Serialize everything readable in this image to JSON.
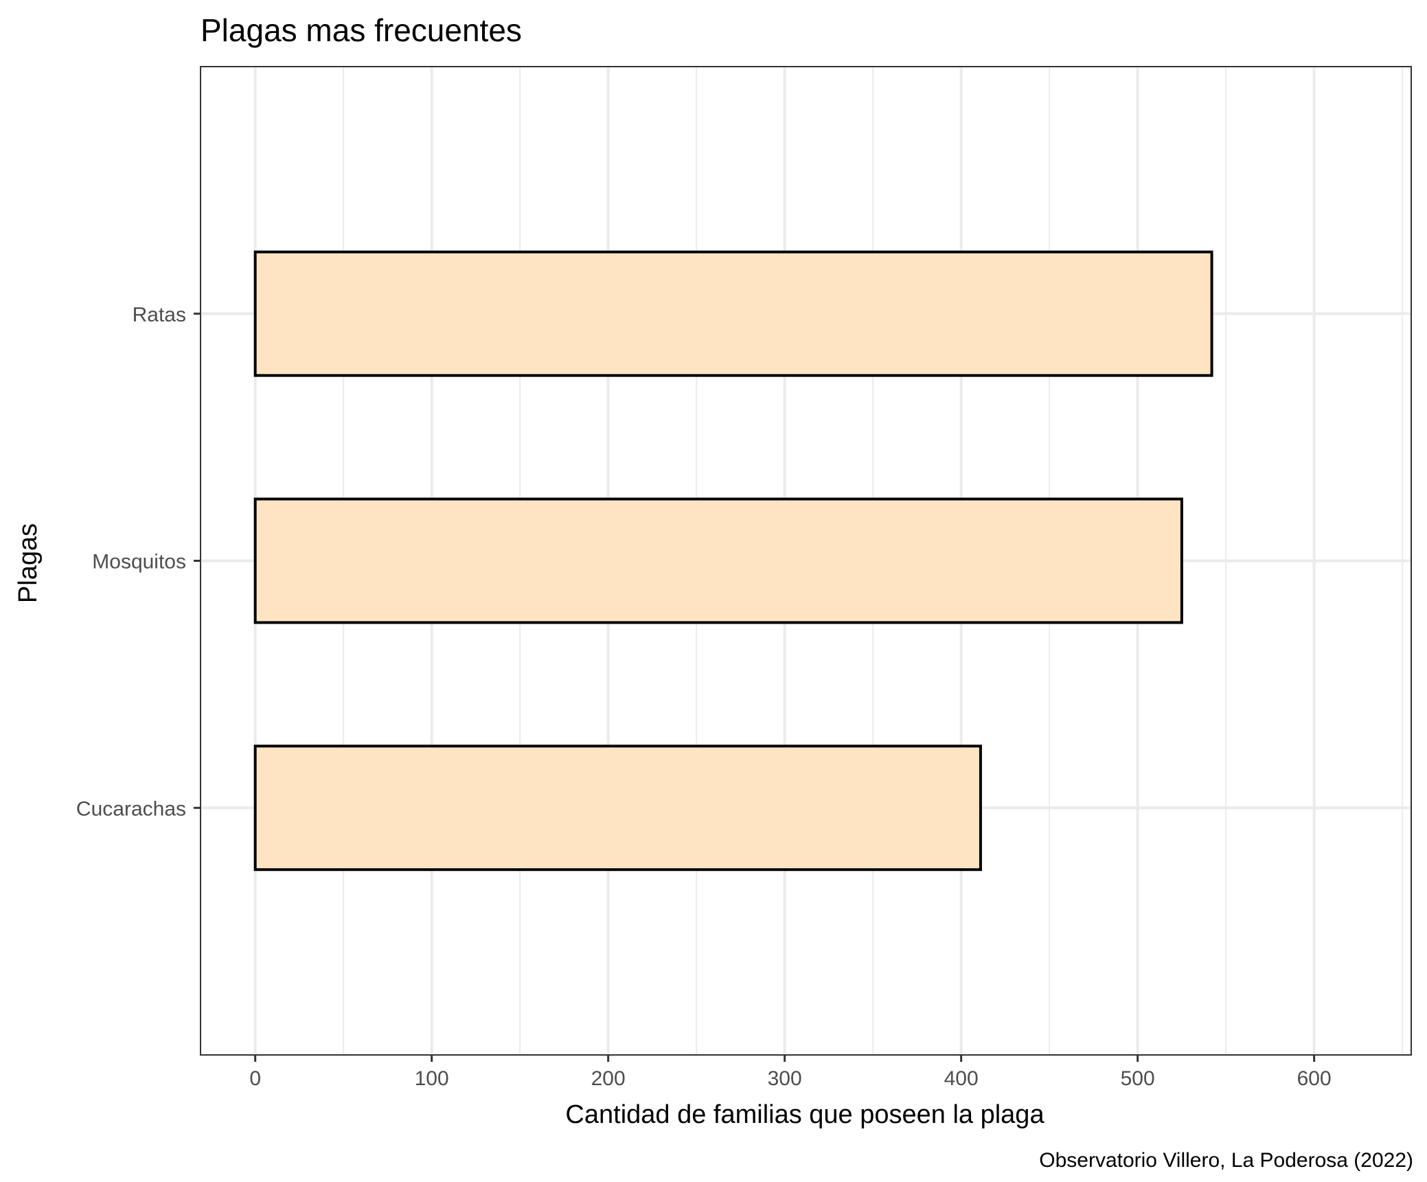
{
  "chart_data": {
    "type": "bar",
    "orientation": "horizontal",
    "title": "Plagas mas frecuentes",
    "xlabel": "Cantidad de familias que poseen la plaga",
    "ylabel": "Plagas",
    "caption": "Observatorio Villero, La Poderosa (2022)",
    "categories": [
      "Cucarachas",
      "Mosquitos",
      "Ratas"
    ],
    "values": [
      411,
      525,
      542
    ],
    "xlim": [
      -31,
      655
    ],
    "xticks": [
      0,
      100,
      200,
      300,
      400,
      500,
      600
    ],
    "xtick_labels": [
      "0",
      "100",
      "200",
      "300",
      "400",
      "500",
      "600"
    ],
    "grid": true,
    "legend": "none",
    "colors": {
      "bar_fill": "#FFE4C4",
      "bar_stroke": "#000000",
      "grid": "#ebebeb",
      "panel_border": "#333333"
    }
  }
}
